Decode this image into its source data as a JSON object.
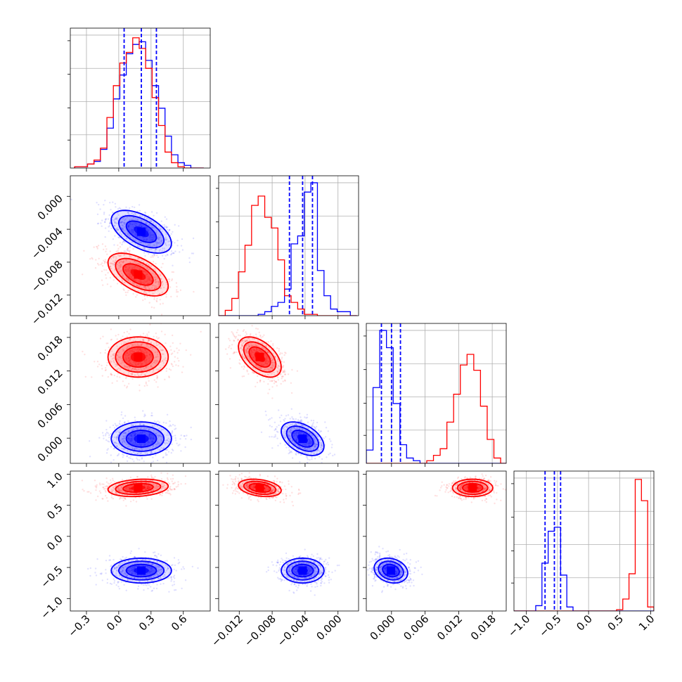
{
  "chart_data": {
    "type": "corner",
    "parameters": 4,
    "grid": true,
    "colors": {
      "model_a": "#0000ff",
      "model_b": "#ff0000",
      "quantile_lines": "#0000ff"
    },
    "ranges": [
      [
        -0.45,
        0.85
      ],
      [
        -0.0145,
        0.0025
      ],
      [
        -0.0045,
        0.0205
      ],
      [
        -1.2,
        1.05
      ]
    ],
    "x_ticks": [
      [
        -0.3,
        0.0,
        0.3,
        0.6
      ],
      [
        -0.012,
        -0.008,
        -0.004,
        0.0
      ],
      [
        0.0,
        0.006,
        0.012,
        0.018
      ],
      [
        -1.0,
        -0.5,
        0.0,
        0.5,
        1.0
      ]
    ],
    "x_tick_labels": [
      [
        "−0.3",
        "0.0",
        "0.3",
        "0.6"
      ],
      [
        "−0.012",
        "−0.008",
        "−0.004",
        "0.000"
      ],
      [
        "0.000",
        "0.006",
        "0.012",
        "0.018"
      ],
      [
        "−1.0",
        "−0.5",
        "0.0",
        "0.5",
        "1.0"
      ]
    ],
    "y_ticks": [
      null,
      [
        0.0,
        -0.004,
        -0.008,
        -0.012
      ],
      [
        0.018,
        0.012,
        0.006,
        0.0
      ],
      [
        1.0,
        0.5,
        0.0,
        -0.5,
        -1.0
      ]
    ],
    "y_tick_labels": [
      null,
      [
        "0.000",
        "−0.004",
        "−0.008",
        "−0.012"
      ],
      [
        "0.018",
        "0.012",
        "0.006",
        "0.000"
      ],
      [
        "1.0",
        "0.5",
        "0.0",
        "−0.5",
        "−1.0"
      ]
    ],
    "quantiles": [
      [
        0.05,
        0.21,
        0.35
      ],
      [
        -0.0059,
        -0.0043,
        -0.0031
      ],
      [
        -0.0018,
        0.0,
        0.0016
      ],
      [
        -0.7,
        -0.55,
        -0.45
      ]
    ],
    "histograms": [
      {
        "edges": [
          -0.41,
          -0.35,
          -0.29,
          -0.23,
          -0.17,
          -0.11,
          -0.05,
          0.01,
          0.07,
          0.13,
          0.19,
          0.25,
          0.31,
          0.37,
          0.43,
          0.49,
          0.55,
          0.61,
          0.67,
          0.73,
          0.79
        ],
        "series": [
          {
            "name": "",
            "color": "#0000ff",
            "values": [
              0.01,
              0.01,
              0.03,
              0.05,
              0.14,
              0.3,
              0.52,
              0.7,
              0.86,
              0.93,
              0.95,
              0.81,
              0.62,
              0.45,
              0.24,
              0.1,
              0.04,
              0.02,
              0.0,
              0.0
            ]
          },
          {
            "name": "",
            "color": "#ff0000",
            "values": [
              0.01,
              0.01,
              0.03,
              0.06,
              0.15,
              0.38,
              0.62,
              0.79,
              0.87,
              0.98,
              0.9,
              0.75,
              0.53,
              0.32,
              0.12,
              0.04,
              0.01,
              0.0,
              0.0,
              0.0
            ]
          }
        ]
      },
      {
        "edges": [
          -0.0145,
          -0.0137,
          -0.0129,
          -0.0121,
          -0.0113,
          -0.0105,
          -0.0097,
          -0.0089,
          -0.0081,
          -0.0073,
          -0.0065,
          -0.0057,
          -0.0049,
          -0.0041,
          -0.0033,
          -0.0025,
          -0.0017,
          -0.0009,
          -0.0001,
          0.0007,
          0.0015,
          0.0023
        ],
        "series": [
          {
            "name": "",
            "color": "#0000ff",
            "values": [
              0.0,
              0.0,
              0.0,
              0.0,
              0.0,
              0.0,
              0.01,
              0.03,
              0.07,
              0.1,
              0.2,
              0.54,
              0.6,
              0.93,
              1.0,
              0.34,
              0.15,
              0.05,
              0.03,
              0.03,
              0.0
            ]
          },
          {
            "name": "",
            "color": "#ff0000",
            "values": [
              0.0,
              0.04,
              0.13,
              0.33,
              0.53,
              0.83,
              0.9,
              0.74,
              0.66,
              0.42,
              0.15,
              0.1,
              0.05,
              0.01,
              0.01,
              0.0,
              0.0,
              0.0,
              0.0,
              0.0,
              0.0
            ]
          }
        ]
      },
      {
        "edges": [
          -0.0045,
          -0.0033,
          -0.0021,
          -0.0009,
          0.0003,
          0.0015,
          0.0027,
          0.0039,
          0.0051,
          0.0063,
          0.0075,
          0.0087,
          0.0099,
          0.0111,
          0.0123,
          0.0135,
          0.0147,
          0.0159,
          0.0171,
          0.0183,
          0.0195,
          0.0207
        ],
        "series": [
          {
            "name": "",
            "color": "#0000ff",
            "values": [
              0.1,
              0.57,
              1.0,
              0.87,
              0.45,
              0.14,
              0.04,
              0.02,
              0.0,
              0.0,
              0.0,
              0.0,
              0.0,
              0.0,
              0.0,
              0.0,
              0.0,
              0.0,
              0.0,
              0.0,
              0.0
            ]
          },
          {
            "name": "",
            "color": "#ff0000",
            "values": [
              0.0,
              0.0,
              0.0,
              0.0,
              0.0,
              0.0,
              0.0,
              0.0,
              0.0,
              0.02,
              0.06,
              0.11,
              0.31,
              0.52,
              0.74,
              0.82,
              0.7,
              0.43,
              0.18,
              0.04,
              0.0
            ]
          }
        ]
      },
      {
        "edges": [
          -1.25,
          -1.15,
          -1.05,
          -0.95,
          -0.85,
          -0.75,
          -0.65,
          -0.55,
          -0.45,
          -0.35,
          -0.25,
          -0.15,
          -0.05,
          0.05,
          0.15,
          0.25,
          0.35,
          0.45,
          0.55,
          0.65,
          0.75,
          0.85,
          0.95,
          1.05
        ],
        "series": [
          {
            "name": "",
            "color": "#0000ff",
            "values": [
              0.0,
              0.0,
              0.0,
              0.0,
              0.04,
              0.36,
              0.6,
              0.63,
              0.27,
              0.03,
              0.0,
              0.0,
              0.0,
              0.0,
              0.0,
              0.0,
              0.0,
              0.0,
              0.0,
              0.0,
              0.0,
              0.0,
              0.0
            ]
          },
          {
            "name": "",
            "color": "#ff0000",
            "values": [
              0.0,
              0.0,
              0.0,
              0.0,
              0.0,
              0.0,
              0.0,
              0.0,
              0.0,
              0.0,
              0.0,
              0.0,
              0.0,
              0.0,
              0.0,
              0.0,
              0.0,
              0.01,
              0.09,
              0.28,
              0.99,
              0.83,
              0.03
            ]
          }
        ]
      }
    ],
    "scatter_2d": [
      {
        "x_param": 0,
        "y_param": 1,
        "series": [
          {
            "name": "",
            "color": "#0000ff",
            "mean": [
              0.21,
              -0.0043
            ],
            "std": [
              0.14,
              0.0013
            ],
            "corr": -0.55
          },
          {
            "name": "",
            "color": "#ff0000",
            "mean": [
              0.18,
              -0.0095
            ],
            "std": [
              0.14,
              0.0013
            ],
            "corr": -0.55
          }
        ]
      },
      {
        "x_param": 0,
        "y_param": 2,
        "series": [
          {
            "name": "",
            "color": "#0000ff",
            "mean": [
              0.21,
              -0.0001
            ],
            "std": [
              0.14,
              0.0015
            ],
            "corr": 0.0
          },
          {
            "name": "",
            "color": "#ff0000",
            "mean": [
              0.18,
              0.0145
            ],
            "std": [
              0.14,
              0.0018
            ],
            "corr": 0.0
          }
        ]
      },
      {
        "x_param": 1,
        "y_param": 2,
        "series": [
          {
            "name": "",
            "color": "#0000ff",
            "mean": [
              -0.0043,
              -0.0001
            ],
            "std": [
              0.0013,
              0.0015
            ],
            "corr": -0.45
          },
          {
            "name": "",
            "color": "#ff0000",
            "mean": [
              -0.0095,
              0.0145
            ],
            "std": [
              0.0013,
              0.0018
            ],
            "corr": -0.5
          }
        ]
      },
      {
        "x_param": 0,
        "y_param": 3,
        "series": [
          {
            "name": "",
            "color": "#0000ff",
            "mean": [
              0.21,
              -0.55
            ],
            "std": [
              0.14,
              0.1
            ],
            "corr": 0.0
          },
          {
            "name": "",
            "color": "#ff0000",
            "mean": [
              0.18,
              0.78
            ],
            "std": [
              0.14,
              0.07
            ],
            "corr": 0.2
          }
        ]
      },
      {
        "x_param": 1,
        "y_param": 3,
        "series": [
          {
            "name": "",
            "color": "#0000ff",
            "mean": [
              -0.0043,
              -0.55
            ],
            "std": [
              0.0013,
              0.1
            ],
            "corr": 0.0
          },
          {
            "name": "",
            "color": "#ff0000",
            "mean": [
              -0.0095,
              0.78
            ],
            "std": [
              0.0013,
              0.07
            ],
            "corr": -0.3
          }
        ]
      },
      {
        "x_param": 2,
        "y_param": 3,
        "series": [
          {
            "name": "",
            "color": "#0000ff",
            "mean": [
              -0.0001,
              -0.55
            ],
            "std": [
              0.0015,
              0.1
            ],
            "corr": -0.2
          },
          {
            "name": "",
            "color": "#ff0000",
            "mean": [
              0.0145,
              0.78
            ],
            "std": [
              0.0018,
              0.07
            ],
            "corr": 0.0
          }
        ]
      }
    ]
  }
}
